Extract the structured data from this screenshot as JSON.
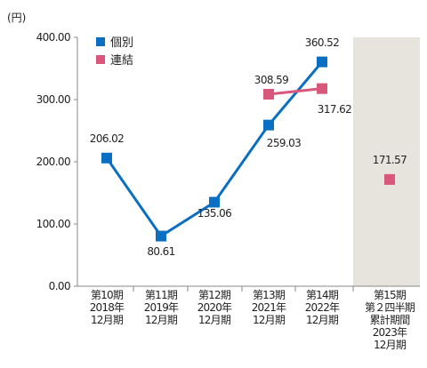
{
  "chart_data": {
    "type": "line",
    "unit_label": "(円)",
    "y_ticks": [
      "0.00",
      "100.00",
      "200.00",
      "300.00",
      "400.00"
    ],
    "ylim": [
      0,
      400
    ],
    "categories": [
      [
        "第10期",
        "2018年",
        "12月期"
      ],
      [
        "第11期",
        "2019年",
        "12月期"
      ],
      [
        "第12期",
        "2020年",
        "12月期"
      ],
      [
        "第13期",
        "2021年",
        "12月期"
      ],
      [
        "第14期",
        "2022年",
        "12月期"
      ],
      [
        "第15期",
        "第２四半期",
        "累計期間",
        "2023年",
        "12月期"
      ]
    ],
    "highlight_category_index": 5,
    "highlight_color": "#e6e4dc",
    "series": [
      {
        "name": "個別",
        "color": "#0a6fc2",
        "values": [
          206.02,
          80.61,
          135.06,
          259.03,
          360.52,
          null
        ],
        "labels": [
          "206.02",
          "80.61",
          "135.06",
          "259.03",
          "360.52",
          ""
        ],
        "line": true
      },
      {
        "name": "連結",
        "color": "#d9577a",
        "values": [
          null,
          null,
          null,
          308.59,
          317.62,
          171.57
        ],
        "labels": [
          "",
          "",
          "",
          "308.59",
          "317.62",
          "171.57"
        ],
        "line": true,
        "line_segment": [
          3,
          4
        ]
      }
    ],
    "legend_position": "top-left",
    "grid": false
  }
}
